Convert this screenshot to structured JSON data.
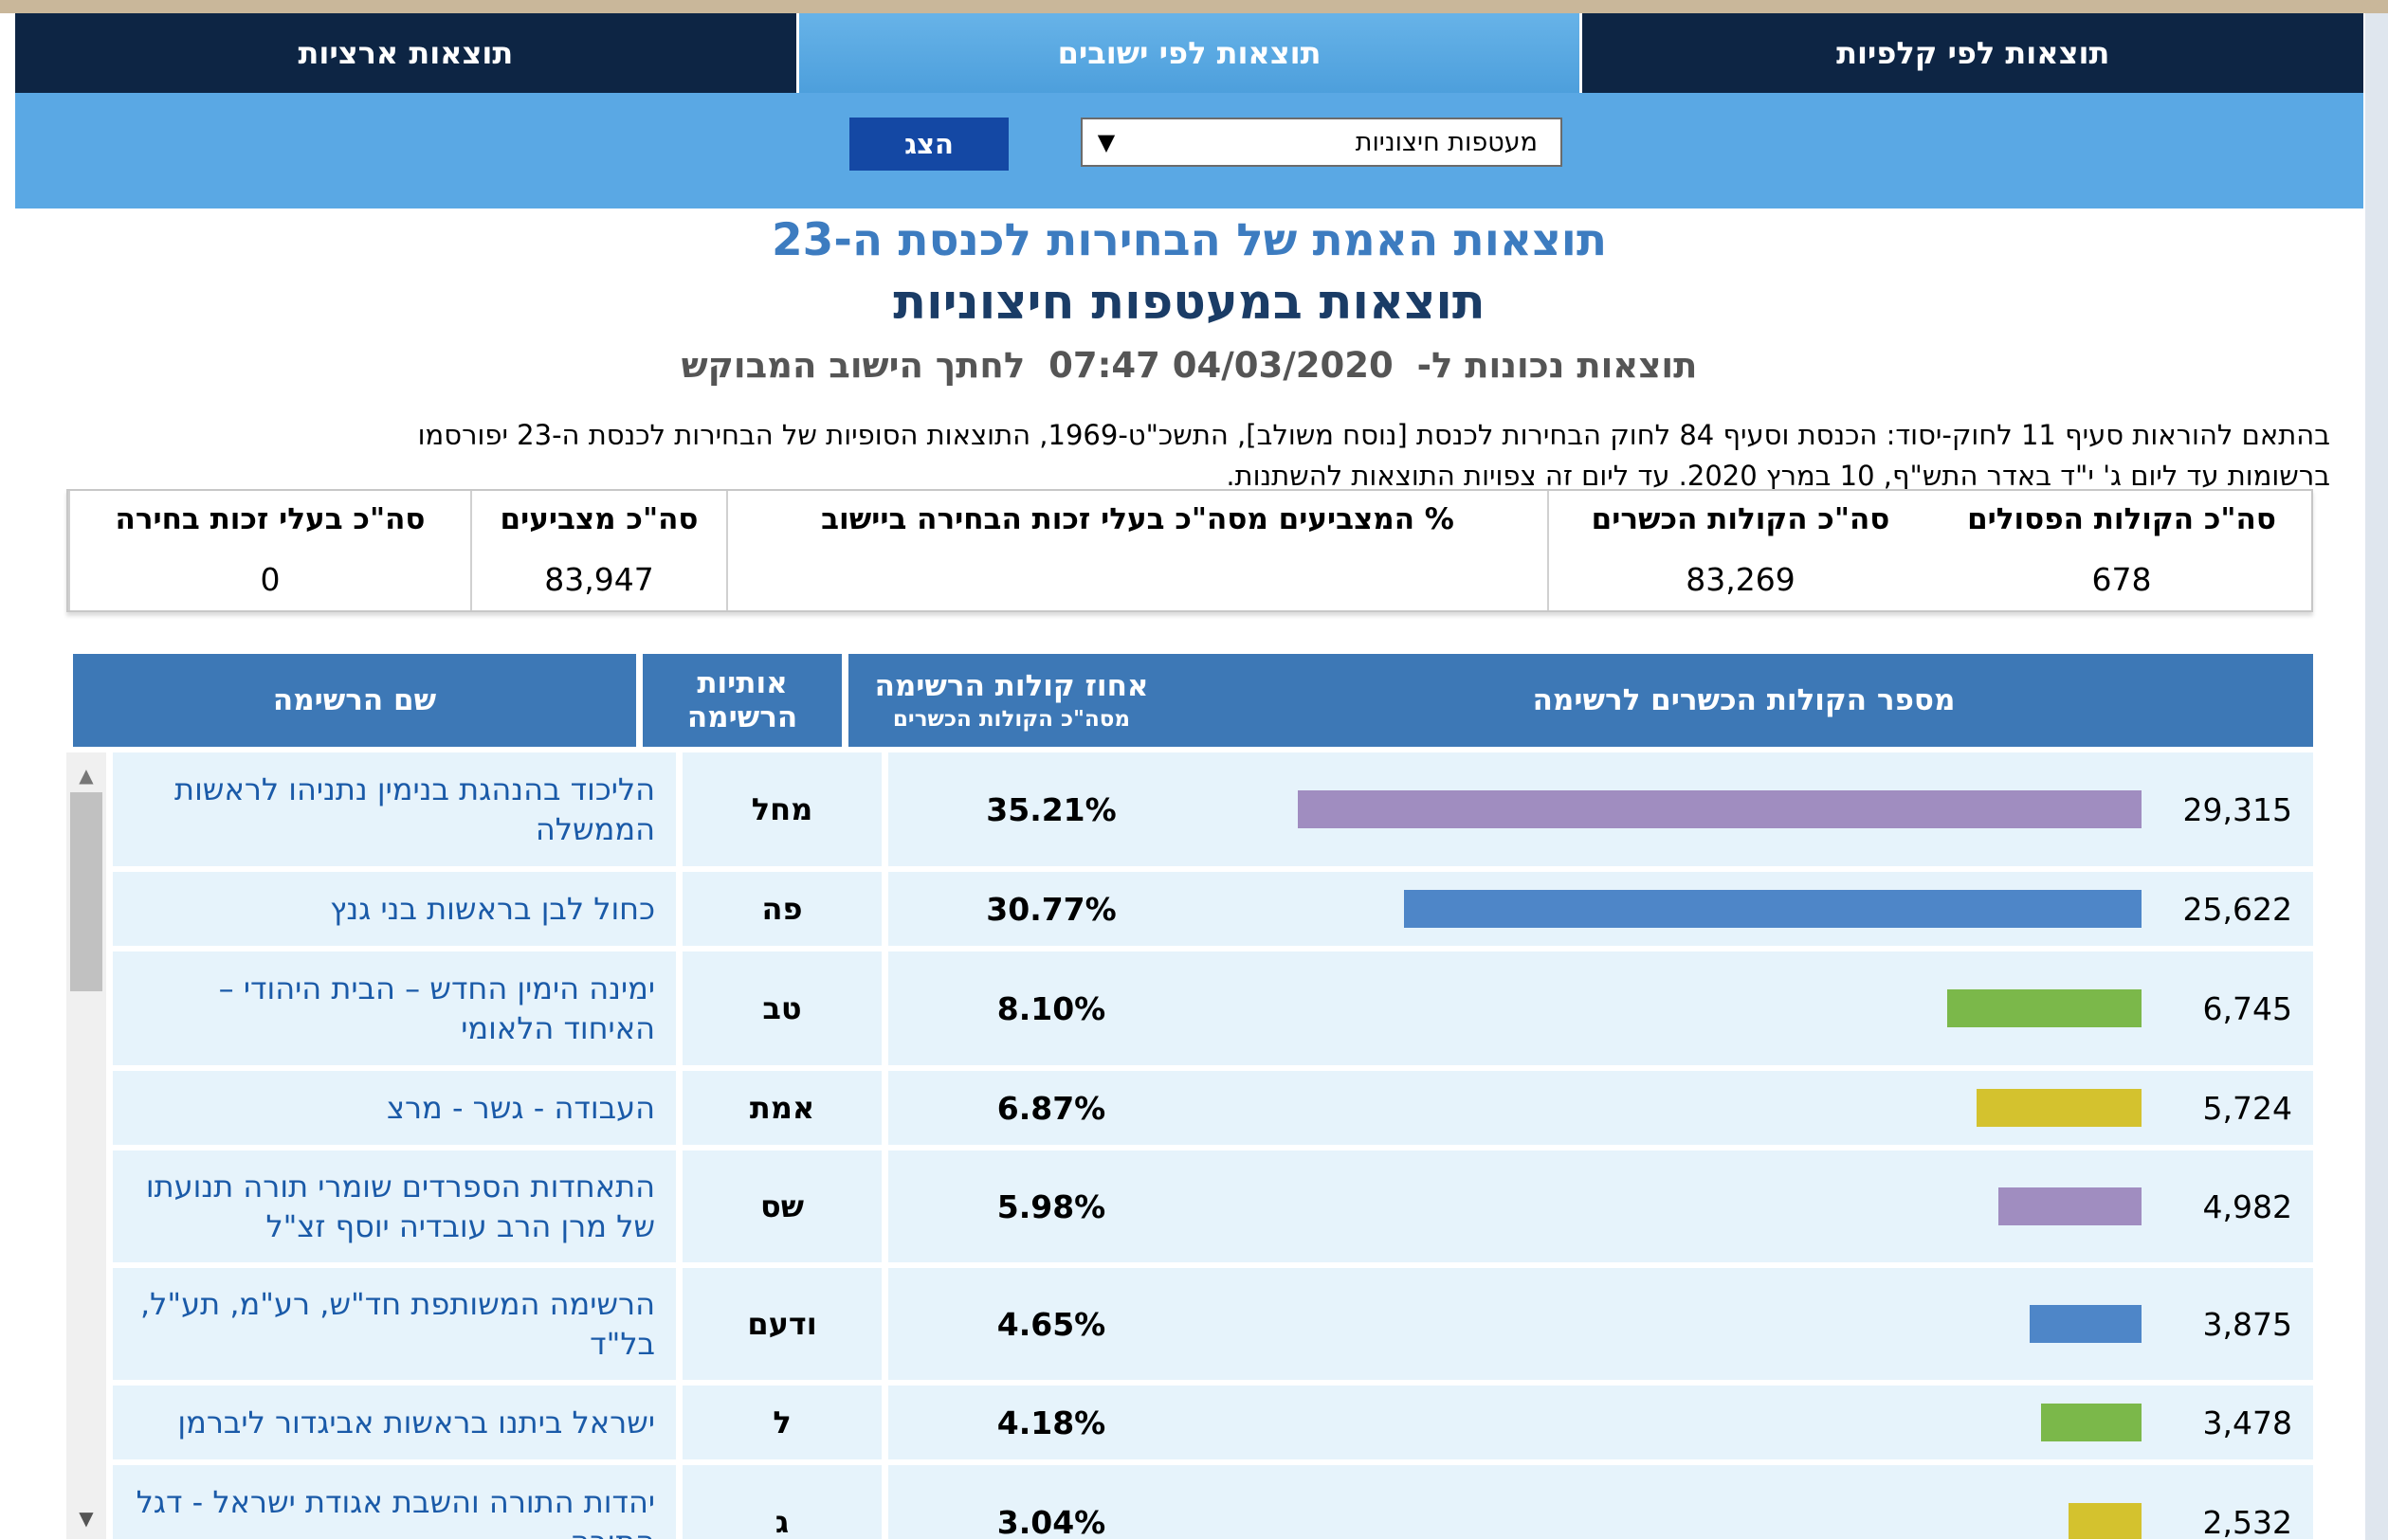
{
  "tabs": [
    {
      "label": "תוצאות ארציות"
    },
    {
      "label": "תוצאות לפי ישובים"
    },
    {
      "label": "תוצאות לפי קלפיות"
    }
  ],
  "filter": {
    "selected": "מעטפות חיצוניות",
    "show_button": "הצג"
  },
  "header": {
    "title": "תוצאות האמת של הבחירות לכנסת ה-23",
    "subtitle": "תוצאות במעטפות חיצוניות",
    "as_of_label": "תוצאות נכונות ל-",
    "as_of_time": "07:47 04/03/2020",
    "as_of_suffix": "לחתך הישוב המבוקש"
  },
  "notice": {
    "line1": "בהתאם להוראות סעיף 11 לחוק-יסוד: הכנסת וסעיף 84 לחוק הבחירות לכנסת [נוסח משולב], התשכ\"ט-1969, התוצאות הסופיות של הבחירות לכנסת ה-23 יפורסמו",
    "line2": "ברשומות עד ליום ג' י\"ד באדר התש\"ף, 10 במרץ 2020. עד ליום זה צפויות התוצאות להשתנות."
  },
  "summary": {
    "eligible_label": "סה\"כ בעלי זכות בחירה",
    "eligible_value": "0",
    "voters_label": "סה\"כ מצביעים",
    "voters_value": "83,947",
    "turnout_label": "% המצביעים מסה\"כ בעלי זכות הבחירה ביישוב",
    "turnout_value": "",
    "valid_label": "סה\"כ הקולות הכשרים",
    "valid_value": "83,269",
    "invalid_label": "סה\"כ הקולות הפסולים",
    "invalid_value": "678"
  },
  "table": {
    "col_name": "שם הרשימה",
    "col_letters_1": "אותיות",
    "col_letters_2": "הרשימה",
    "col_pct_1": "אחוז קולות הרשימה",
    "col_pct_2": "מסה\"כ הקולות הכשרים",
    "col_votes": "מספר הקולות הכשרים לרשימה"
  },
  "colors": {
    "purple": "#a08dc0",
    "blue": "#4e86c8",
    "green": "#7bb84a",
    "yellow": "#d4c22e"
  },
  "rows": [
    {
      "name": "הליכוד בהנהגת בנימין נתניהו לראשות הממשלה",
      "letters": "מחל",
      "pct": "35.21%",
      "votes": "29,315",
      "votes_n": 29315,
      "color": "#a08dc0"
    },
    {
      "name": "כחול לבן בראשות בני גנץ",
      "letters": "פה",
      "pct": "30.77%",
      "votes": "25,622",
      "votes_n": 25622,
      "color": "#4e86c8"
    },
    {
      "name": "ימינה הימין החדש – הבית היהודי – האיחוד הלאומי",
      "letters": "טב",
      "pct": "8.10%",
      "votes": "6,745",
      "votes_n": 6745,
      "color": "#7bb84a"
    },
    {
      "name": "העבודה - גשר - מרצ",
      "letters": "אמת",
      "pct": "6.87%",
      "votes": "5,724",
      "votes_n": 5724,
      "color": "#d4c22e"
    },
    {
      "name": "התאחדות הספרדים שומרי תורה תנועתו של מרן הרב עובדיה יוסף זצ\"ל",
      "letters": "שס",
      "pct": "5.98%",
      "votes": "4,982",
      "votes_n": 4982,
      "color": "#a08dc0"
    },
    {
      "name": "הרשימה המשותפת חד\"ש, רע\"מ, תע\"ל, בל\"ד",
      "letters": "ודעם",
      "pct": "4.65%",
      "votes": "3,875",
      "votes_n": 3875,
      "color": "#4e86c8"
    },
    {
      "name": "ישראל ביתנו בראשות אביגדור ליברמן",
      "letters": "ל",
      "pct": "4.18%",
      "votes": "3,478",
      "votes_n": 3478,
      "color": "#7bb84a"
    },
    {
      "name": "יהדות התורה והשבת אגודת ישראל - דגל התורה",
      "letters": "ג",
      "pct": "3.04%",
      "votes": "2,532",
      "votes_n": 2532,
      "color": "#d4c22e"
    }
  ]
}
